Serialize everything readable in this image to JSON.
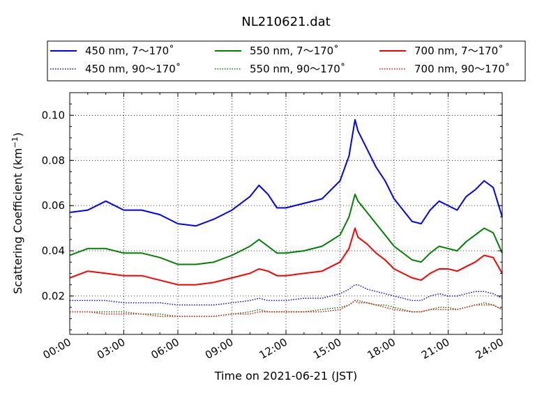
{
  "chart_data": {
    "type": "line",
    "title": "NL210621.dat",
    "xlabel": "Time on 2021-06-21 (JST)",
    "ylabel": "Scattering Coefficient (km",
    "ylabel_sup": "−1",
    "ylabel_end": ")",
    "xlim": [
      "00:00",
      "24:00"
    ],
    "ylim": [
      0.003,
      0.11
    ],
    "x_ticks": [
      "00:00",
      "03:00",
      "06:00",
      "09:00",
      "12:00",
      "15:00",
      "18:00",
      "21:00",
      "24:00"
    ],
    "y_ticks": [
      0.02,
      0.04,
      0.06,
      0.08,
      0.1
    ],
    "y_tick_labels": [
      "0.02",
      "0.04",
      "0.06",
      "0.08",
      "0.10"
    ],
    "grid": true,
    "legend_position": "top",
    "x": [
      "00:00",
      "01:00",
      "02:00",
      "03:00",
      "04:00",
      "05:00",
      "06:00",
      "07:00",
      "08:00",
      "09:00",
      "10:00",
      "10:30",
      "11:00",
      "11:30",
      "12:00",
      "13:00",
      "14:00",
      "15:00",
      "15:30",
      "15:50",
      "16:00",
      "16:30",
      "17:00",
      "17:30",
      "18:00",
      "19:00",
      "19:30",
      "20:00",
      "20:30",
      "21:00",
      "21:30",
      "22:00",
      "22:30",
      "23:00",
      "23:30",
      "24:00"
    ],
    "series": [
      {
        "name": "450 nm, 7～170˚",
        "color": "#0000ff",
        "style": "solid",
        "values": [
          0.057,
          0.058,
          0.062,
          0.058,
          0.058,
          0.056,
          0.052,
          0.051,
          0.054,
          0.058,
          0.064,
          0.069,
          0.065,
          0.059,
          0.059,
          0.061,
          0.063,
          0.071,
          0.082,
          0.098,
          0.093,
          0.085,
          0.077,
          0.071,
          0.063,
          0.053,
          0.052,
          0.058,
          0.062,
          0.06,
          0.058,
          0.064,
          0.067,
          0.071,
          0.068,
          0.055
        ]
      },
      {
        "name": "450 nm, 90～170˚",
        "color": "#0000ff",
        "style": "dotted",
        "values": [
          0.018,
          0.018,
          0.018,
          0.017,
          0.017,
          0.017,
          0.016,
          0.016,
          0.016,
          0.017,
          0.018,
          0.019,
          0.018,
          0.018,
          0.018,
          0.019,
          0.019,
          0.021,
          0.023,
          0.025,
          0.025,
          0.023,
          0.022,
          0.021,
          0.02,
          0.018,
          0.018,
          0.02,
          0.021,
          0.02,
          0.02,
          0.021,
          0.022,
          0.022,
          0.021,
          0.019
        ]
      },
      {
        "name": "550 nm, 7～170˚",
        "color": "#008000",
        "style": "solid",
        "values": [
          0.038,
          0.041,
          0.041,
          0.039,
          0.039,
          0.037,
          0.034,
          0.034,
          0.035,
          0.038,
          0.042,
          0.045,
          0.042,
          0.039,
          0.039,
          0.04,
          0.042,
          0.047,
          0.055,
          0.065,
          0.062,
          0.057,
          0.052,
          0.047,
          0.042,
          0.036,
          0.035,
          0.039,
          0.042,
          0.041,
          0.04,
          0.044,
          0.047,
          0.05,
          0.048,
          0.039
        ]
      },
      {
        "name": "550 nm, 90～170˚",
        "color": "#008000",
        "style": "dotted",
        "values": [
          0.013,
          0.013,
          0.013,
          0.013,
          0.012,
          0.012,
          0.011,
          0.011,
          0.011,
          0.012,
          0.013,
          0.014,
          0.013,
          0.013,
          0.013,
          0.013,
          0.014,
          0.015,
          0.016,
          0.018,
          0.018,
          0.017,
          0.016,
          0.016,
          0.015,
          0.013,
          0.013,
          0.014,
          0.015,
          0.015,
          0.014,
          0.015,
          0.016,
          0.017,
          0.016,
          0.014
        ]
      },
      {
        "name": "700 nm, 7～170˚",
        "color": "#ff0000",
        "style": "solid",
        "values": [
          0.028,
          0.031,
          0.03,
          0.029,
          0.029,
          0.027,
          0.025,
          0.025,
          0.026,
          0.028,
          0.03,
          0.032,
          0.031,
          0.029,
          0.029,
          0.03,
          0.031,
          0.035,
          0.041,
          0.05,
          0.046,
          0.043,
          0.039,
          0.036,
          0.032,
          0.028,
          0.027,
          0.03,
          0.032,
          0.032,
          0.031,
          0.033,
          0.035,
          0.038,
          0.037,
          0.03
        ]
      },
      {
        "name": "700 nm, 90～170˚",
        "color": "#ff0000",
        "style": "dotted",
        "values": [
          0.013,
          0.013,
          0.012,
          0.012,
          0.012,
          0.011,
          0.011,
          0.011,
          0.011,
          0.012,
          0.012,
          0.013,
          0.013,
          0.013,
          0.013,
          0.013,
          0.013,
          0.014,
          0.016,
          0.018,
          0.017,
          0.017,
          0.016,
          0.015,
          0.014,
          0.013,
          0.013,
          0.014,
          0.014,
          0.014,
          0.014,
          0.015,
          0.016,
          0.016,
          0.016,
          0.014
        ]
      }
    ]
  }
}
